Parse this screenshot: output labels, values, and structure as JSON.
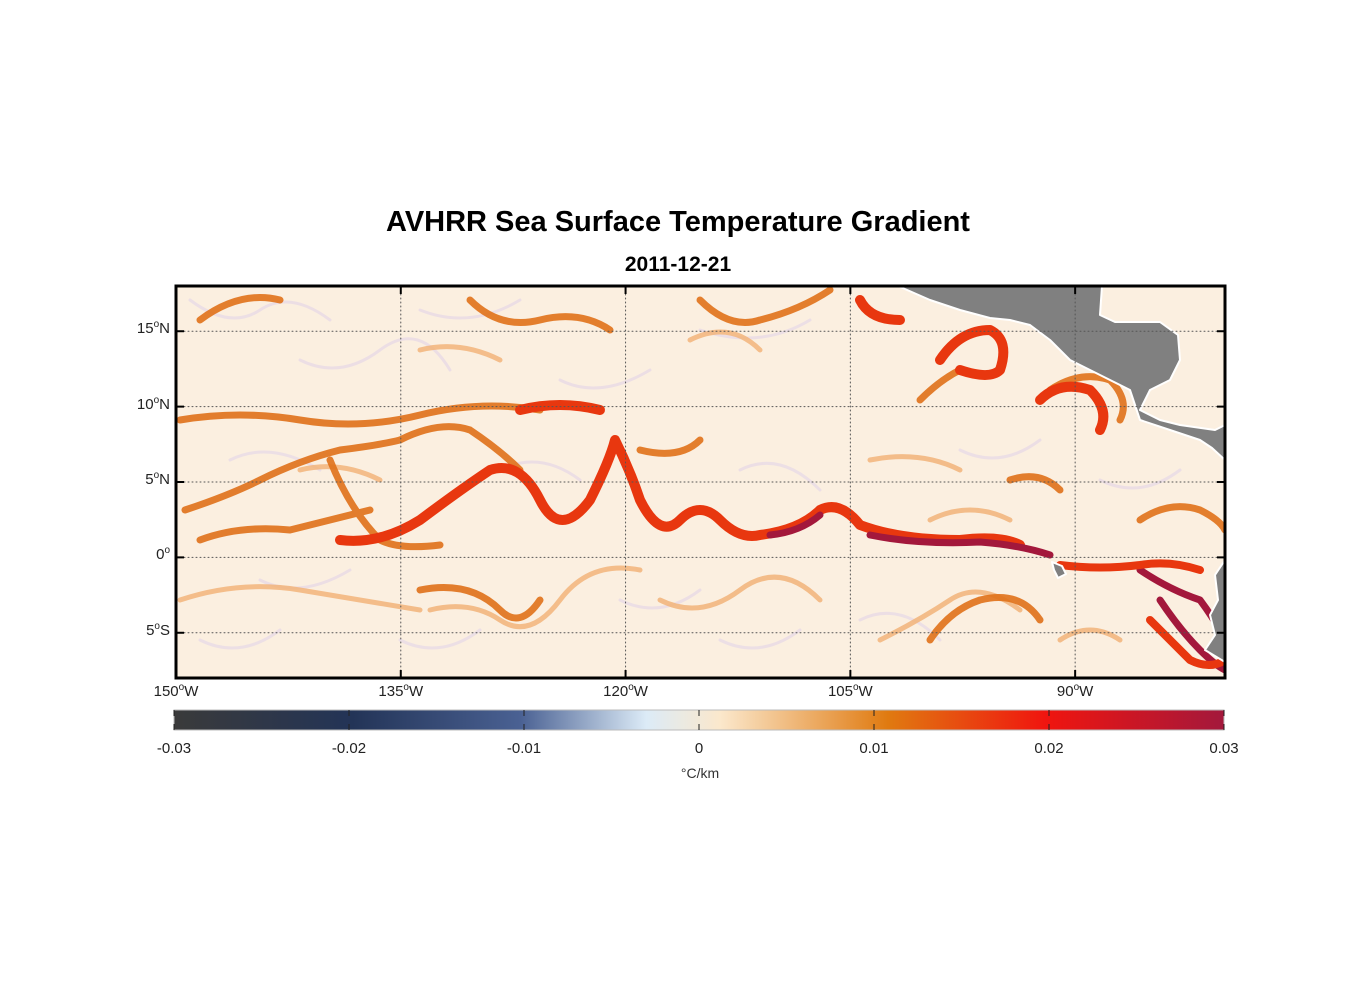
{
  "figure": {
    "title": "AVHRR Sea Surface Temperature Gradient",
    "date": "2011-12-21"
  },
  "map": {
    "lon_range": [
      -150,
      -80
    ],
    "lat_range": [
      -8,
      18
    ],
    "land_color": "#808080",
    "grid": "dotted",
    "lat_ticks": [
      {
        "value": 15,
        "deg": "15",
        "hemi": "N"
      },
      {
        "value": 10,
        "deg": "10",
        "hemi": "N"
      },
      {
        "value": 5,
        "deg": "5",
        "hemi": "N"
      },
      {
        "value": 0,
        "deg": "0",
        "hemi": ""
      },
      {
        "value": -5,
        "deg": "5",
        "hemi": "S"
      }
    ],
    "lon_ticks": [
      {
        "value": -150,
        "deg": "150",
        "hemi": "W"
      },
      {
        "value": -135,
        "deg": "135",
        "hemi": "W"
      },
      {
        "value": -120,
        "deg": "120",
        "hemi": "W"
      },
      {
        "value": -105,
        "deg": "105",
        "hemi": "W"
      },
      {
        "value": -90,
        "deg": "90",
        "hemi": "W"
      }
    ]
  },
  "colorbar": {
    "min": -0.03,
    "max": 0.03,
    "tick_labels": [
      "-0.03",
      "-0.02",
      "-0.01",
      "0",
      "0.01",
      "0.02",
      "0.03"
    ],
    "units": "°C/km",
    "colors": [
      "#3a3a3a",
      "#233457",
      "#4a6193",
      "#dcebf7",
      "#fbe8cc",
      "#e07a10",
      "#f0150f",
      "#a3183c"
    ]
  }
}
